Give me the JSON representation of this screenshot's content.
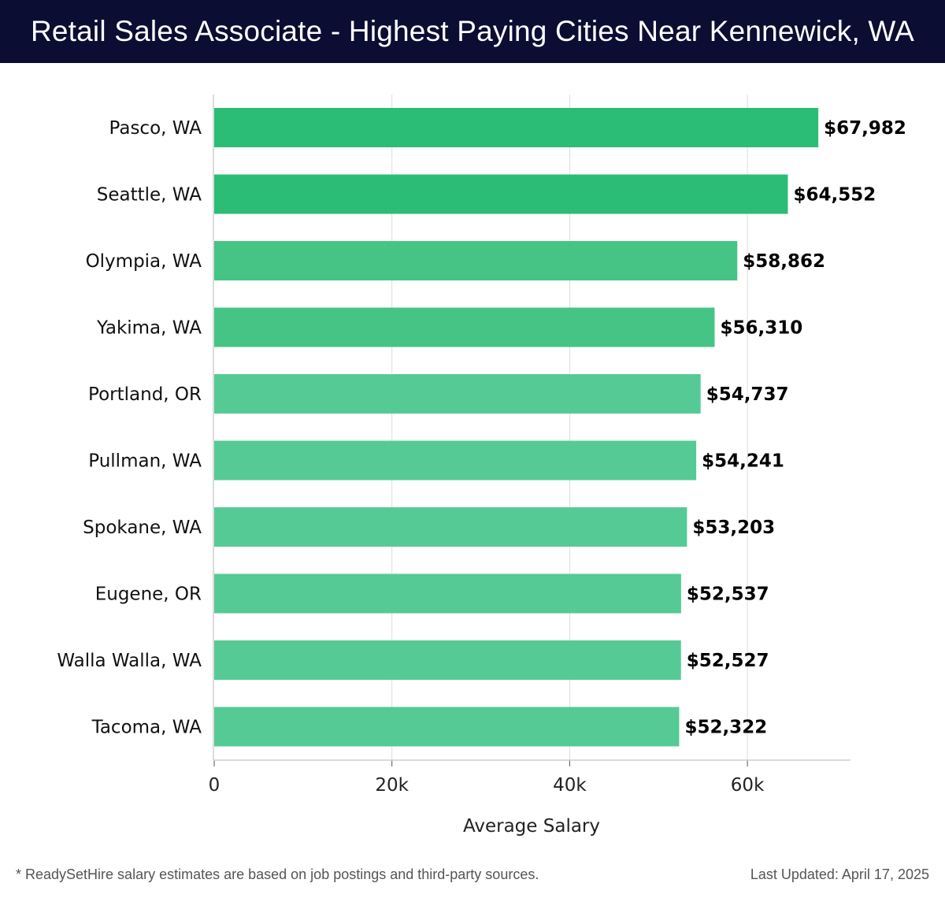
{
  "header": {
    "title": "Retail Sales Associate - Highest Paying Cities Near Kennewick, WA"
  },
  "footer": {
    "note": "* ReadySetHire salary estimates are based on job postings and third-party sources.",
    "updated": "Last Updated: April 17, 2025"
  },
  "colors": {
    "header_bg": "#0b0d33",
    "bar_dark": "#2bbd76",
    "bar_mid": "#45c486",
    "bar_light": "#55ca95",
    "grid": "#dddddd"
  },
  "chart_data": {
    "type": "bar",
    "orientation": "horizontal",
    "categories": [
      "Pasco, WA",
      "Seattle, WA",
      "Olympia, WA",
      "Yakima, WA",
      "Portland, OR",
      "Pullman, WA",
      "Spokane, WA",
      "Eugene, OR",
      "Walla Walla, WA",
      "Tacoma, WA"
    ],
    "values": [
      67982,
      64552,
      58862,
      56310,
      54737,
      54241,
      53203,
      52537,
      52527,
      52322
    ],
    "value_labels": [
      "$67,982",
      "$64,552",
      "$58,862",
      "$56,310",
      "$54,737",
      "$54,241",
      "$53,203",
      "$52,537",
      "$52,527",
      "$52,322"
    ],
    "xlabel": "Average Salary",
    "ylabel": "",
    "xlim": [
      0,
      71600
    ],
    "xticks": [
      0,
      20000,
      40000,
      60000
    ],
    "xtick_labels": [
      "0",
      "20k",
      "40k",
      "60k"
    ],
    "grid": "vertical"
  }
}
